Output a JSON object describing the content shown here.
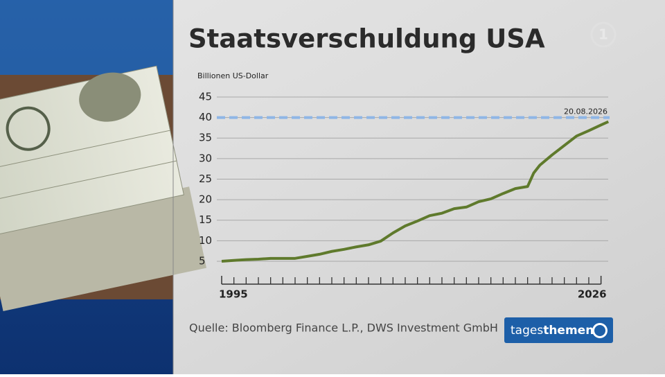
{
  "header": {
    "title": "Staatsverschuldung USA",
    "channel_logo": "1"
  },
  "chart_data": {
    "type": "line",
    "y_label": "Billionen US-Dollar",
    "x": [
      1995,
      1996,
      1997,
      1998,
      1999,
      2000,
      2001,
      2002,
      2003,
      2004,
      2005,
      2006,
      2007,
      2008,
      2009,
      2010,
      2011,
      2012,
      2013,
      2014,
      2015,
      2016,
      2017,
      2018,
      2019,
      2020,
      2020.5,
      2021,
      2022,
      2023,
      2024,
      2025,
      2026,
      2026.6
    ],
    "series": [
      {
        "color": "#5f7a2c",
        "values": [
          5.0,
          5.2,
          5.4,
          5.5,
          5.7,
          5.7,
          5.7,
          6.2,
          6.7,
          7.4,
          7.9,
          8.5,
          9.0,
          9.9,
          11.9,
          13.6,
          14.8,
          16.1,
          16.7,
          17.8,
          18.2,
          19.5,
          20.2,
          21.5,
          22.7,
          23.2,
          26.5,
          28.4,
          30.9,
          33.2,
          35.5,
          36.8,
          38.2,
          39.0
        ]
      }
    ],
    "reference_line": {
      "value": 40,
      "label": "20.08.2026",
      "color": "#8fb6e6"
    },
    "xlim": [
      1995,
      2026.7
    ],
    "xticks": [
      1995,
      2026
    ],
    "minor_xticks": [
      1996,
      1997,
      1998,
      1999,
      2000,
      2001,
      2002,
      2003,
      2004,
      2005,
      2006,
      2007,
      2008,
      2009,
      2010,
      2011,
      2012,
      2013,
      2014,
      2015,
      2016,
      2017,
      2018,
      2019,
      2020,
      2021,
      2022,
      2023,
      2024,
      2025
    ],
    "ylim": [
      0,
      45
    ],
    "yticks": [
      5,
      10,
      15,
      20,
      25,
      30,
      35,
      40,
      45
    ],
    "grid": true,
    "source": "Quelle: Bloomberg Finance L.P., DWS Investment GmbH"
  },
  "brand": {
    "part1": "tages",
    "part2": "themen"
  }
}
